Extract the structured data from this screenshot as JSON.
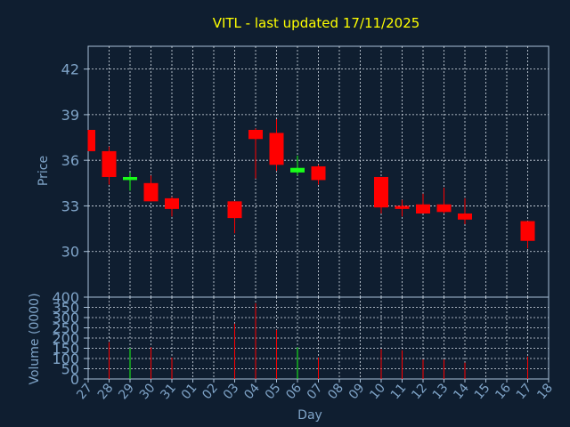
{
  "chart_data": {
    "type": "candlestick",
    "title": "VITL - last updated 17/11/2025",
    "ylabel": "Price",
    "volume_ylabel": "Volume (0000)",
    "xlabel": "Day",
    "x_ticks": [
      "27",
      "28",
      "29",
      "30",
      "31",
      "01",
      "02",
      "03",
      "04",
      "05",
      "06",
      "07",
      "08",
      "09",
      "10",
      "11",
      "12",
      "13",
      "14",
      "15",
      "16",
      "17",
      "18"
    ],
    "price_ticks": [
      30,
      33,
      36,
      39,
      42
    ],
    "price_ylim": [
      27.0,
      43.5
    ],
    "volume_ticks": [
      0,
      50,
      100,
      150,
      200,
      250,
      300,
      350,
      400
    ],
    "volume_ylim": [
      0,
      400
    ],
    "grid": true,
    "colors": {
      "background": "#0f1e30",
      "plot_border": "#a8c0d8",
      "grid": "#d8e0ea",
      "title": "#ffff00",
      "axis_text": "#7fa4c8",
      "up": "#19ff19",
      "down": "#ff0000"
    },
    "candles": [
      {
        "day": "27",
        "open": 38.0,
        "high": 38.0,
        "low": 36.6,
        "close": 36.6,
        "volume": 0
      },
      {
        "day": "28",
        "open": 36.6,
        "high": 36.9,
        "low": 34.4,
        "close": 34.9,
        "volume": 180
      },
      {
        "day": "29",
        "open": 34.7,
        "high": 35.2,
        "low": 34.0,
        "close": 34.9,
        "volume": 150
      },
      {
        "day": "30",
        "open": 34.5,
        "high": 35.0,
        "low": 33.3,
        "close": 33.3,
        "volume": 155
      },
      {
        "day": "31",
        "open": 33.5,
        "high": 33.6,
        "low": 32.3,
        "close": 32.8,
        "volume": 105
      },
      {
        "day": "03",
        "open": 33.3,
        "high": 33.3,
        "low": 31.2,
        "close": 32.2,
        "volume": 270
      },
      {
        "day": "04",
        "open": 38.0,
        "high": 38.1,
        "low": 34.8,
        "close": 37.4,
        "volume": 370
      },
      {
        "day": "05",
        "open": 37.8,
        "high": 38.7,
        "low": 35.3,
        "close": 35.7,
        "volume": 240
      },
      {
        "day": "06",
        "open": 35.2,
        "high": 36.3,
        "low": 35.0,
        "close": 35.5,
        "volume": 155
      },
      {
        "day": "07",
        "open": 35.6,
        "high": 35.7,
        "low": 34.4,
        "close": 34.7,
        "volume": 105
      },
      {
        "day": "10",
        "open": 34.9,
        "high": 34.9,
        "low": 32.5,
        "close": 32.9,
        "volume": 145
      },
      {
        "day": "11",
        "open": 33.0,
        "high": 33.4,
        "low": 32.3,
        "close": 32.8,
        "volume": 140
      },
      {
        "day": "12",
        "open": 33.1,
        "high": 33.8,
        "low": 32.5,
        "close": 32.5,
        "volume": 95
      },
      {
        "day": "13",
        "open": 33.1,
        "high": 34.2,
        "low": 32.5,
        "close": 32.6,
        "volume": 95
      },
      {
        "day": "14",
        "open": 32.5,
        "high": 33.5,
        "low": 31.8,
        "close": 32.1,
        "volume": 80
      },
      {
        "day": "17",
        "open": 32.0,
        "high": 32.0,
        "low": 30.2,
        "close": 30.7,
        "volume": 110
      }
    ]
  }
}
